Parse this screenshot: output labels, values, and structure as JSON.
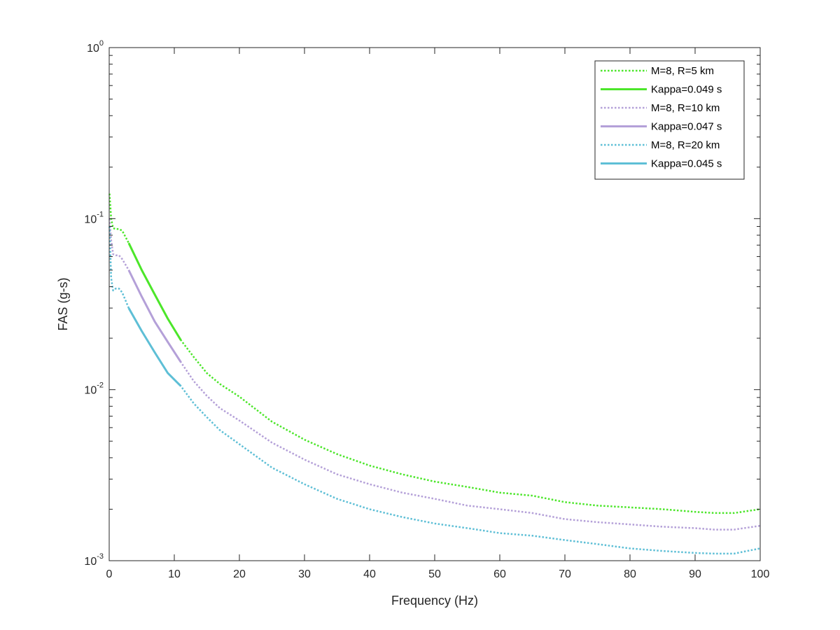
{
  "chart_data": {
    "type": "line",
    "xlabel": "Frequency (Hz)",
    "ylabel": "FAS (g-s)",
    "xlim": [
      0,
      100
    ],
    "ylim": [
      0.001,
      1
    ],
    "yscale": "log",
    "grid": false,
    "legend_position": "top-right",
    "x_ticks": [
      0,
      10,
      20,
      30,
      40,
      50,
      60,
      70,
      80,
      90,
      100
    ],
    "x_tick_labels": [
      "0",
      "10",
      "20",
      "30",
      "40",
      "50",
      "60",
      "70",
      "80",
      "90",
      "100"
    ],
    "y_ticks": [
      0.001,
      0.01,
      0.1,
      1
    ],
    "y_tick_labels": [
      {
        "base": "10",
        "exp": "-3"
      },
      {
        "base": "10",
        "exp": "-2"
      },
      {
        "base": "10",
        "exp": "-1"
      },
      {
        "base": "10",
        "exp": "0"
      }
    ],
    "series": [
      {
        "name": "M=8, R=5 km",
        "color": "#4ce62a",
        "style": "dotted",
        "x": [
          0.05,
          0.3,
          0.6,
          1.0,
          1.5,
          2.0,
          3,
          5,
          7,
          9,
          11,
          13,
          15,
          17,
          20,
          25,
          30,
          35,
          40,
          45,
          50,
          55,
          60,
          65,
          70,
          75,
          80,
          85,
          90,
          93,
          96,
          98,
          100
        ],
        "y": [
          0.14,
          0.1,
          0.088,
          0.087,
          0.087,
          0.085,
          0.072,
          0.05,
          0.036,
          0.026,
          0.0195,
          0.0155,
          0.0125,
          0.0108,
          0.0091,
          0.0065,
          0.0051,
          0.0042,
          0.0036,
          0.0032,
          0.0029,
          0.0027,
          0.0025,
          0.0024,
          0.0022,
          0.0021,
          0.00205,
          0.002,
          0.00193,
          0.0019,
          0.0019,
          0.00195,
          0.002
        ]
      },
      {
        "name": "Kappa=0.049 s",
        "color": "#4ce62a",
        "style": "solid",
        "x": [
          3,
          5,
          7,
          9,
          11
        ],
        "y": [
          0.072,
          0.05,
          0.036,
          0.026,
          0.0195
        ]
      },
      {
        "name": "M=8, R=10 km",
        "color": "#b4a0d8",
        "style": "dotted",
        "x": [
          0.05,
          0.3,
          0.6,
          1.0,
          1.5,
          2.0,
          3,
          5,
          7,
          9,
          11,
          13,
          15,
          17,
          20,
          25,
          30,
          35,
          40,
          45,
          50,
          55,
          60,
          65,
          70,
          75,
          80,
          85,
          90,
          93,
          96,
          98,
          100
        ],
        "y": [
          0.1,
          0.075,
          0.062,
          0.061,
          0.061,
          0.058,
          0.05,
          0.035,
          0.025,
          0.019,
          0.0145,
          0.0112,
          0.0092,
          0.0078,
          0.0066,
          0.0049,
          0.0039,
          0.0032,
          0.0028,
          0.0025,
          0.0023,
          0.0021,
          0.002,
          0.0019,
          0.00175,
          0.00168,
          0.00163,
          0.00158,
          0.00155,
          0.00152,
          0.00152,
          0.00156,
          0.0016
        ]
      },
      {
        "name": "Kappa=0.047 s",
        "color": "#b4a0d8",
        "style": "solid",
        "x": [
          3,
          5,
          7,
          9,
          11
        ],
        "y": [
          0.05,
          0.035,
          0.025,
          0.019,
          0.0145
        ]
      },
      {
        "name": "M=8, R=20 km",
        "color": "#5ebfd6",
        "style": "dotted",
        "x": [
          0.05,
          0.3,
          0.6,
          1.0,
          1.5,
          2.0,
          3,
          5,
          7,
          9,
          11,
          13,
          15,
          17,
          20,
          25,
          30,
          35,
          40,
          45,
          50,
          55,
          60,
          65,
          70,
          75,
          80,
          85,
          90,
          93,
          96,
          98,
          100
        ],
        "y": [
          0.09,
          0.045,
          0.038,
          0.039,
          0.039,
          0.037,
          0.03,
          0.022,
          0.0165,
          0.0125,
          0.0105,
          0.0083,
          0.0069,
          0.0058,
          0.0048,
          0.0035,
          0.0028,
          0.0023,
          0.002,
          0.0018,
          0.00165,
          0.00155,
          0.00145,
          0.0014,
          0.00132,
          0.00125,
          0.00118,
          0.00114,
          0.00111,
          0.0011,
          0.0011,
          0.00114,
          0.00118
        ]
      },
      {
        "name": "Kappa=0.045 s",
        "color": "#5ebfd6",
        "style": "solid",
        "x": [
          3,
          5,
          7,
          9,
          11
        ],
        "y": [
          0.03,
          0.022,
          0.0165,
          0.0125,
          0.0105
        ]
      }
    ]
  }
}
